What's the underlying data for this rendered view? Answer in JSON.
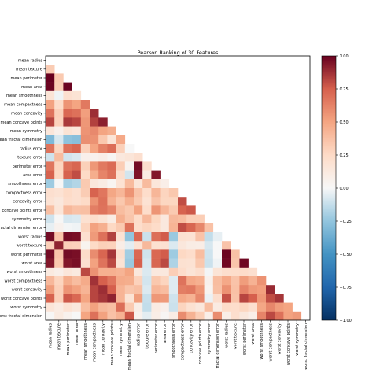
{
  "chart_data": {
    "type": "heatmap",
    "title": "Pearson Ranking of 30 Features",
    "features": [
      "mean radius",
      "mean texture",
      "mean perimeter",
      "mean area",
      "mean smoothness",
      "mean compactness",
      "mean concavity",
      "mean concave points",
      "mean symmetry",
      "mean fractal dimension",
      "radius error",
      "texture error",
      "perimeter error",
      "area error",
      "smoothness error",
      "compactness error",
      "concavity error",
      "concave points error",
      "symmetry error",
      "fractal dimension error",
      "worst radius",
      "worst texture",
      "worst perimeter",
      "worst area",
      "worst smoothness",
      "worst compactness",
      "worst concavity",
      "worst concave points",
      "worst symmetry",
      "worst fractal dimension"
    ],
    "mask": "upper triangle including diagonal",
    "values": [
      [],
      [
        0.32
      ],
      [
        1.0,
        0.33
      ],
      [
        0.99,
        0.32,
        0.99
      ],
      [
        0.17,
        -0.02,
        0.21,
        0.18
      ],
      [
        0.51,
        0.24,
        0.56,
        0.5,
        0.66
      ],
      [
        0.68,
        0.3,
        0.72,
        0.69,
        0.52,
        0.88
      ],
      [
        0.82,
        0.29,
        0.85,
        0.82,
        0.55,
        0.83,
        0.92
      ],
      [
        0.15,
        0.07,
        0.18,
        0.15,
        0.56,
        0.6,
        0.5,
        0.46
      ],
      [
        -0.31,
        -0.08,
        -0.26,
        -0.28,
        0.58,
        0.57,
        0.34,
        0.17,
        0.48
      ],
      [
        0.68,
        0.28,
        0.69,
        0.73,
        0.3,
        0.5,
        0.63,
        0.7,
        0.3,
        0.0
      ],
      [
        -0.1,
        0.39,
        -0.09,
        -0.07,
        0.07,
        0.05,
        0.08,
        0.02,
        0.13,
        0.16,
        0.21
      ],
      [
        0.67,
        0.28,
        0.69,
        0.73,
        0.3,
        0.55,
        0.66,
        0.71,
        0.31,
        0.04,
        0.97,
        0.22
      ],
      [
        0.74,
        0.26,
        0.74,
        0.8,
        0.25,
        0.46,
        0.62,
        0.69,
        0.22,
        -0.09,
        0.95,
        0.11,
        0.94
      ],
      [
        -0.22,
        0.01,
        -0.2,
        -0.17,
        0.33,
        0.14,
        0.1,
        0.03,
        0.19,
        0.4,
        0.16,
        0.4,
        0.15,
        0.08
      ],
      [
        0.21,
        0.19,
        0.25,
        0.21,
        0.32,
        0.74,
        0.67,
        0.49,
        0.42,
        0.56,
        0.36,
        0.23,
        0.42,
        0.28,
        0.34
      ],
      [
        0.19,
        0.14,
        0.23,
        0.21,
        0.25,
        0.57,
        0.69,
        0.44,
        0.34,
        0.45,
        0.33,
        0.19,
        0.36,
        0.27,
        0.27,
        0.8
      ],
      [
        0.38,
        0.16,
        0.41,
        0.37,
        0.38,
        0.64,
        0.68,
        0.62,
        0.39,
        0.34,
        0.51,
        0.23,
        0.56,
        0.42,
        0.33,
        0.74,
        0.77
      ],
      [
        -0.1,
        0.01,
        -0.08,
        -0.07,
        0.2,
        0.23,
        0.18,
        0.1,
        0.45,
        0.35,
        0.24,
        0.41,
        0.27,
        0.13,
        0.41,
        0.39,
        0.31,
        0.31
      ],
      [
        -0.04,
        0.05,
        -0.01,
        -0.02,
        0.28,
        0.51,
        0.45,
        0.26,
        0.33,
        0.69,
        0.23,
        0.28,
        0.24,
        0.13,
        0.43,
        0.8,
        0.73,
        0.61,
        0.37
      ],
      [
        0.97,
        0.35,
        0.97,
        0.96,
        0.21,
        0.54,
        0.69,
        0.83,
        0.19,
        -0.25,
        0.72,
        -0.11,
        0.7,
        0.76,
        -0.23,
        0.2,
        0.19,
        0.36,
        -0.13,
        -0.04
      ],
      [
        0.3,
        0.91,
        0.3,
        0.29,
        0.04,
        0.25,
        0.3,
        0.29,
        0.09,
        -0.05,
        0.19,
        0.41,
        0.2,
        0.2,
        -0.07,
        0.14,
        0.1,
        0.09,
        -0.08,
        -0.0,
        0.36
      ],
      [
        0.97,
        0.36,
        0.97,
        0.96,
        0.24,
        0.59,
        0.73,
        0.86,
        0.22,
        -0.21,
        0.72,
        -0.1,
        0.72,
        0.76,
        -0.22,
        0.26,
        0.23,
        0.39,
        -0.1,
        -0.0,
        0.99,
        0.37
      ],
      [
        0.94,
        0.34,
        0.94,
        0.96,
        0.21,
        0.51,
        0.68,
        0.81,
        0.18,
        -0.23,
        0.75,
        -0.08,
        0.73,
        0.81,
        -0.18,
        0.2,
        0.19,
        0.34,
        -0.11,
        -0.02,
        0.98,
        0.35,
        0.98
      ],
      [
        0.12,
        0.08,
        0.15,
        0.12,
        0.81,
        0.57,
        0.45,
        0.45,
        0.43,
        0.5,
        0.14,
        -0.07,
        0.13,
        0.13,
        0.31,
        0.23,
        0.17,
        0.22,
        -0.01,
        0.17,
        0.22,
        0.23,
        0.24,
        0.21
      ],
      [
        0.41,
        0.28,
        0.46,
        0.39,
        0.47,
        0.87,
        0.75,
        0.67,
        0.47,
        0.46,
        0.29,
        -0.09,
        0.34,
        0.28,
        -0.06,
        0.68,
        0.48,
        0.45,
        0.06,
        0.39,
        0.48,
        0.36,
        0.53,
        0.44,
        0.57
      ],
      [
        0.53,
        0.3,
        0.56,
        0.51,
        0.43,
        0.82,
        0.88,
        0.75,
        0.43,
        0.35,
        0.38,
        -0.07,
        0.42,
        0.39,
        -0.06,
        0.64,
        0.66,
        0.55,
        0.04,
        0.38,
        0.57,
        0.37,
        0.62,
        0.54,
        0.52,
        0.89
      ],
      [
        0.74,
        0.3,
        0.77,
        0.72,
        0.5,
        0.82,
        0.86,
        0.91,
        0.43,
        0.18,
        0.53,
        -0.12,
        0.55,
        0.54,
        -0.1,
        0.48,
        0.44,
        0.6,
        -0.03,
        0.22,
        0.79,
        0.36,
        0.82,
        0.75,
        0.55,
        0.8,
        0.86
      ],
      [
        0.16,
        0.11,
        0.19,
        0.14,
        0.39,
        0.51,
        0.41,
        0.38,
        0.7,
        0.33,
        0.09,
        -0.13,
        0.11,
        0.07,
        -0.11,
        0.28,
        0.2,
        0.14,
        0.39,
        0.11,
        0.24,
        0.23,
        0.27,
        0.21,
        0.49,
        0.61,
        0.53,
        0.5
      ],
      [
        0.01,
        0.12,
        0.05,
        0.0,
        0.5,
        0.69,
        0.51,
        0.37,
        0.44,
        0.77,
        0.05,
        -0.05,
        0.09,
        0.02,
        0.1,
        0.59,
        0.44,
        0.31,
        0.08,
        0.59,
        0.09,
        0.22,
        0.14,
        0.08,
        0.62,
        0.81,
        0.69,
        0.51,
        0.54
      ]
    ],
    "colormap": "RdBu_r",
    "colorbar_range": [
      -1.0,
      1.0
    ],
    "colorbar_ticks": [
      "1.00",
      "0.75",
      "0.50",
      "0.25",
      "0.00",
      "−0.25",
      "−0.50",
      "−0.75",
      "−1.00"
    ],
    "grid": false
  }
}
